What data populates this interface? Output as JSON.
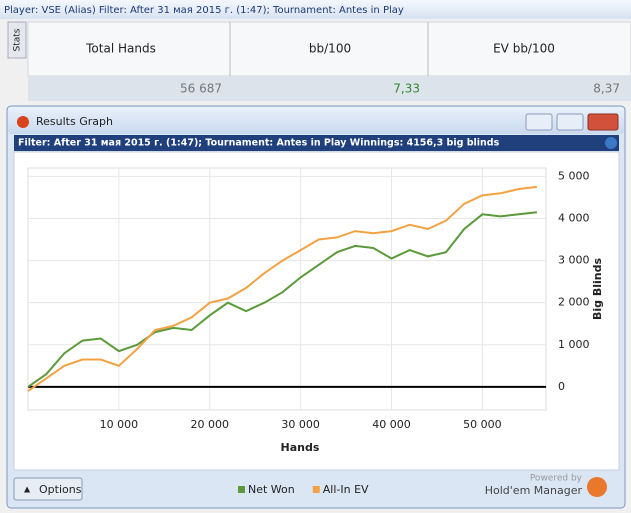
{
  "top_bar": {
    "text": "Player: VSE (Alias)  Filter: After 31 мая 2015 г. (1:47); Tournament: Antes in Play"
  },
  "stats_tab": "Stats",
  "table": {
    "headers": [
      "Total Hands",
      "bb/100",
      "EV bb/100"
    ],
    "rows": [
      [
        "56 687",
        "7,33",
        "8,37"
      ]
    ]
  },
  "window": {
    "title": "Results Graph",
    "filter": "Filter: After 31 мая 2015 г. (1:47); Tournament: Antes in Play  Winnings: 4156,3 big blinds",
    "options": "Options",
    "powered_by": "Powered by",
    "brand": "Hold'em Manager"
  },
  "chart_data": {
    "type": "line",
    "xlabel": "Hands",
    "ylabel": "Big Blinds",
    "grid": true,
    "legend": "bottom",
    "x": [
      0,
      2000,
      4000,
      6000,
      8000,
      10000,
      12000,
      14000,
      16000,
      18000,
      20000,
      22000,
      24000,
      26000,
      28000,
      30000,
      32000,
      34000,
      36000,
      38000,
      40000,
      42000,
      44000,
      46000,
      48000,
      50000,
      52000,
      54000,
      56000
    ],
    "series": [
      {
        "name": "Net Won",
        "color": "#5b9a3a",
        "values": [
          0,
          300,
          800,
          1100,
          1150,
          850,
          1000,
          1300,
          1400,
          1350,
          1700,
          2000,
          1800,
          2000,
          2250,
          2600,
          2900,
          3200,
          3350,
          3300,
          3050,
          3250,
          3100,
          3200,
          3750,
          4100,
          4050,
          4100,
          4150
        ]
      },
      {
        "name": "All-In EV",
        "color": "#f2a243",
        "values": [
          -100,
          200,
          500,
          650,
          650,
          500,
          900,
          1350,
          1450,
          1650,
          2000,
          2100,
          2350,
          2700,
          3000,
          3250,
          3500,
          3550,
          3700,
          3650,
          3700,
          3850,
          3750,
          3950,
          4350,
          4550,
          4600,
          4700,
          4750
        ]
      }
    ],
    "xlim": [
      0,
      57000
    ],
    "ylim": [
      -550,
      5200
    ],
    "xticks": [
      {
        "value": 10000,
        "label": "10 000"
      },
      {
        "value": 20000,
        "label": "20 000"
      },
      {
        "value": 30000,
        "label": "30 000"
      },
      {
        "value": 40000,
        "label": "40 000"
      },
      {
        "value": 50000,
        "label": "50 000"
      }
    ],
    "yticks": [
      0,
      {
        "value": 1000,
        "label": "1 000"
      },
      {
        "value": 2000,
        "label": "2 000"
      },
      {
        "value": 3000,
        "label": "3 000"
      },
      {
        "value": 4000,
        "label": "4 000"
      },
      {
        "value": 5000,
        "label": "5 000"
      }
    ]
  }
}
